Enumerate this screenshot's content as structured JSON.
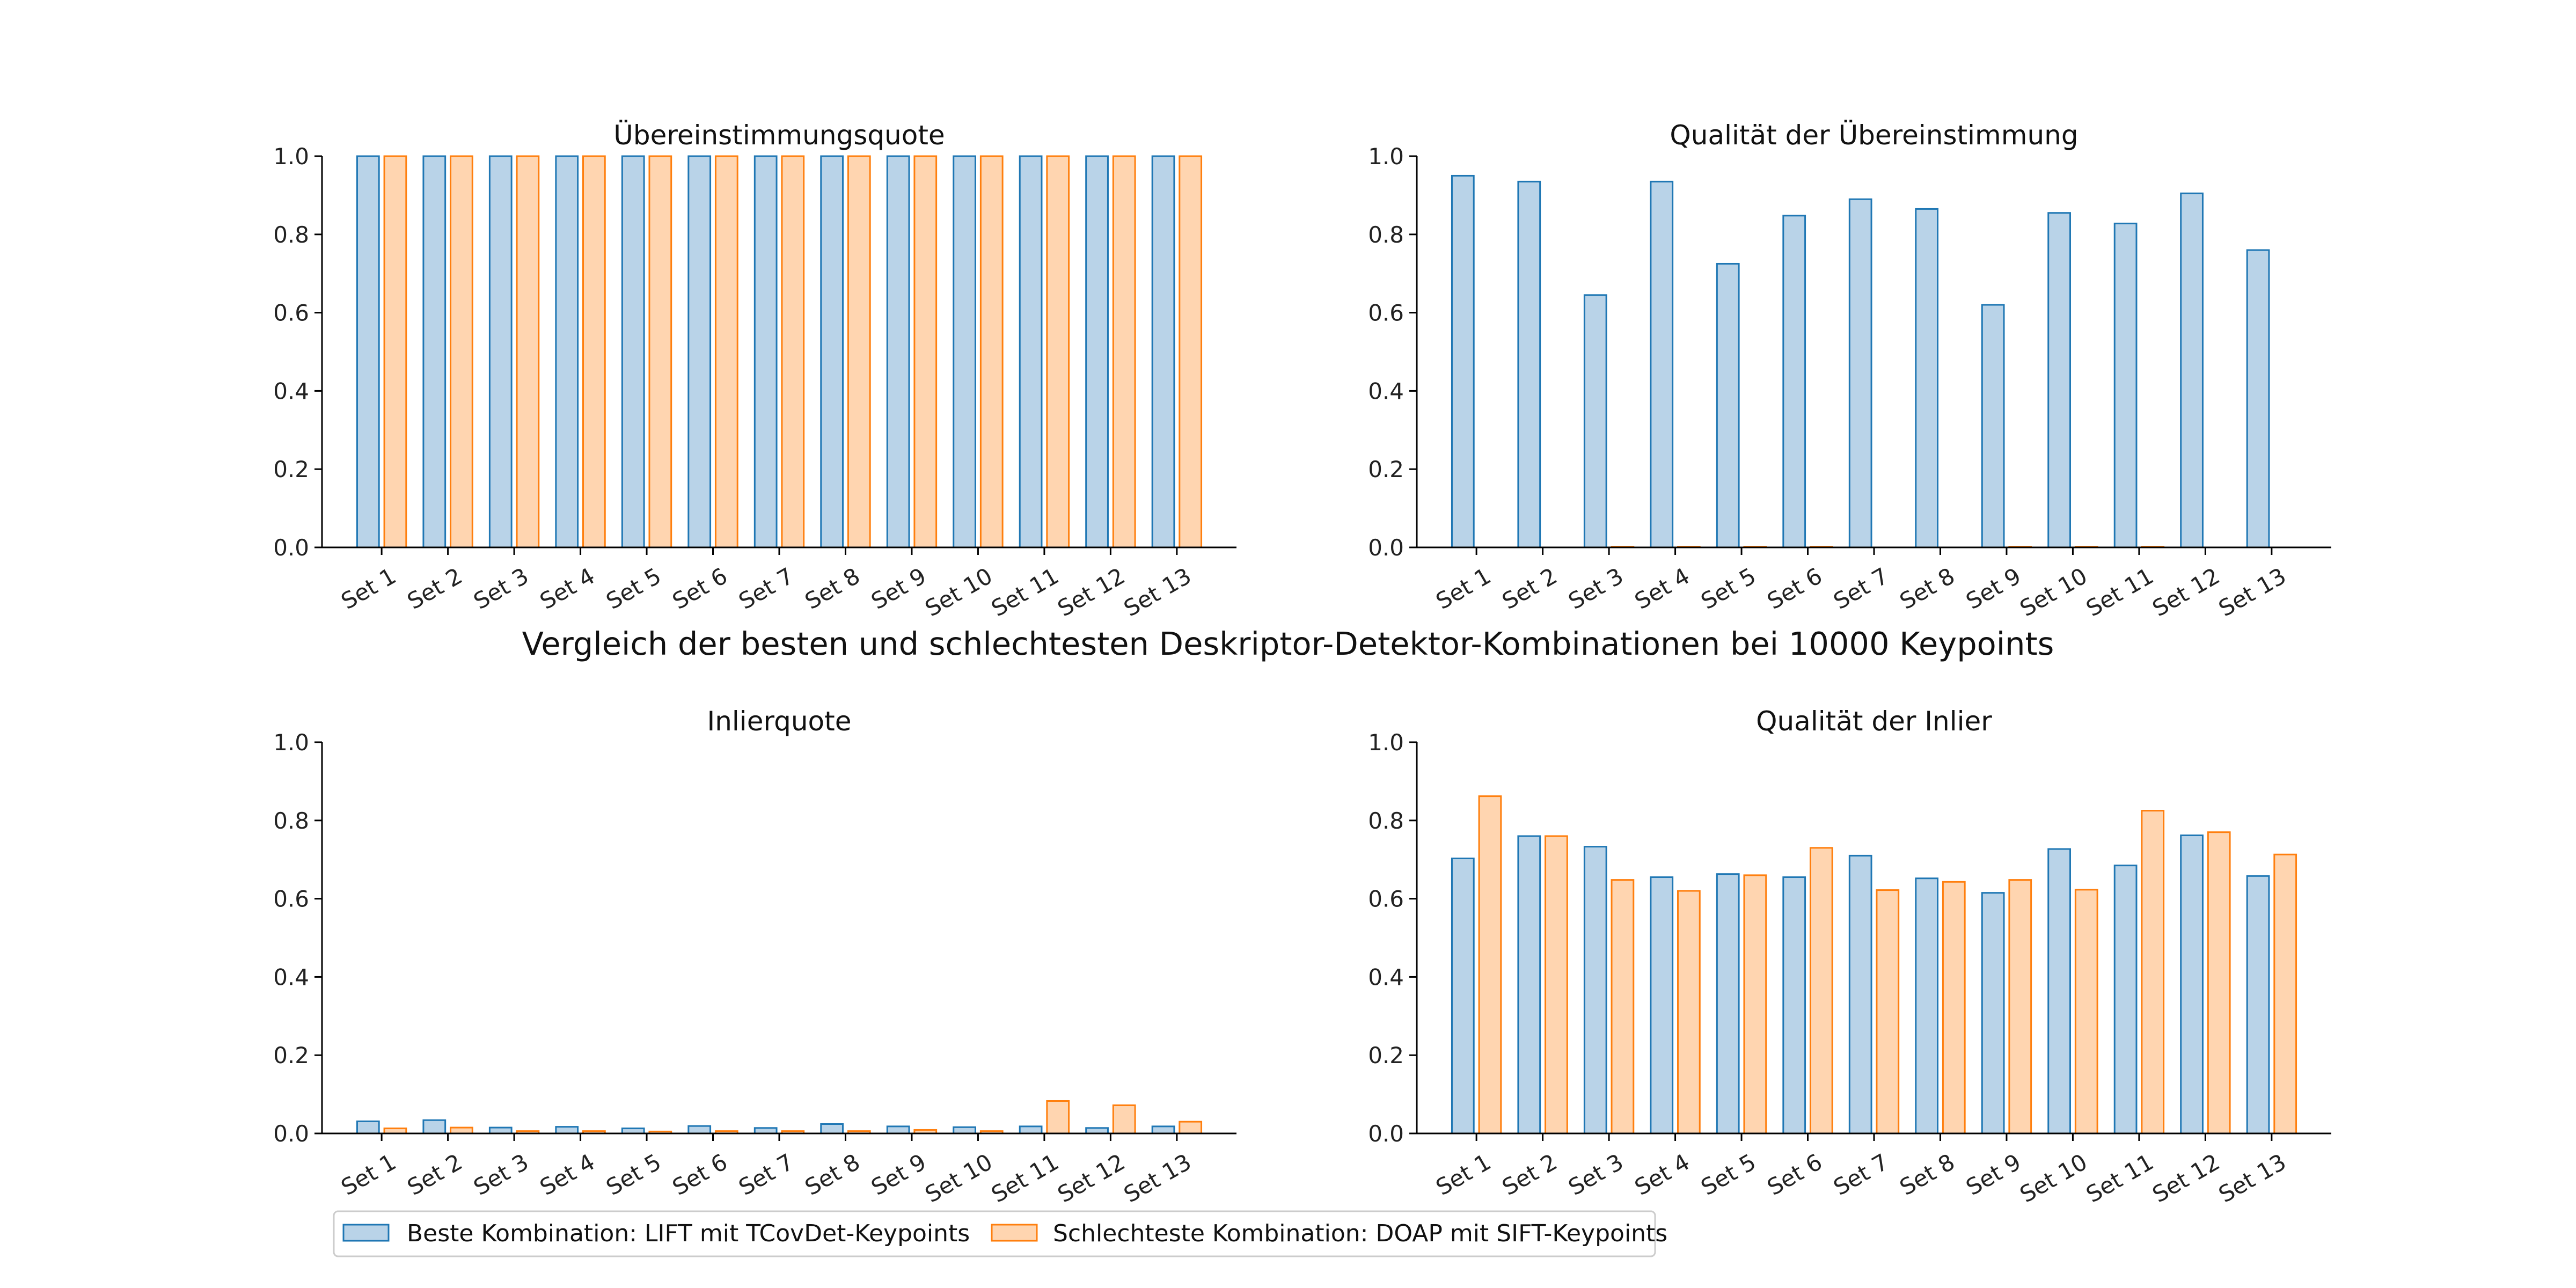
{
  "figure": {
    "suptitle": "Vergleich der besten und schlechtesten Deskriptor-Detektor-Kombinationen bei 10000 Keypoints"
  },
  "legend": {
    "items": [
      {
        "label": "Beste Kombination: LIFT mit TCovDet-Keypoints",
        "fill": "#b9d3e8",
        "stroke": "#1f77b4"
      },
      {
        "label": "Schlechteste Kombination: DOAP mit SIFT-Keypoints",
        "fill": "#ffd5b0",
        "stroke": "#ff7f0e"
      }
    ]
  },
  "colors": {
    "series_fill": [
      "#b9d3e8",
      "#ffd5b0"
    ],
    "series_stroke": [
      "#1f77b4",
      "#ff7f0e"
    ],
    "axis": "#000000"
  },
  "chart_data": [
    {
      "type": "bar",
      "title": "Übereinstimmungsquote",
      "xlabel": "",
      "ylabel": "",
      "ylim": [
        0,
        1.0
      ],
      "yticks": [
        "0.0",
        "0.2",
        "0.4",
        "0.6",
        "0.8",
        "1.0"
      ],
      "categories": [
        "Set 1",
        "Set 2",
        "Set 3",
        "Set 4",
        "Set 5",
        "Set 6",
        "Set 7",
        "Set 8",
        "Set 9",
        "Set 10",
        "Set 11",
        "Set 12",
        "Set 13"
      ],
      "series": [
        {
          "name": "Beste Kombination: LIFT mit TCovDet-Keypoints",
          "values": [
            1,
            1,
            1,
            1,
            1,
            1,
            1,
            1,
            1,
            1,
            1,
            1,
            1
          ]
        },
        {
          "name": "Schlechteste Kombination: DOAP mit SIFT-Keypoints",
          "values": [
            1,
            1,
            1,
            1,
            1,
            1,
            1,
            1,
            1,
            1,
            1,
            1,
            1
          ]
        }
      ],
      "grid": false
    },
    {
      "type": "bar",
      "title": "Qualität der Übereinstimmung",
      "xlabel": "",
      "ylabel": "",
      "ylim": [
        0,
        1.0
      ],
      "yticks": [
        "0.0",
        "0.2",
        "0.4",
        "0.6",
        "0.8",
        "1.0"
      ],
      "categories": [
        "Set 1",
        "Set 2",
        "Set 3",
        "Set 4",
        "Set 5",
        "Set 6",
        "Set 7",
        "Set 8",
        "Set 9",
        "Set 10",
        "Set 11",
        "Set 12",
        "Set 13"
      ],
      "series": [
        {
          "name": "Beste Kombination: LIFT mit TCovDet-Keypoints",
          "values": [
            0.95,
            0.935,
            0.645,
            0.935,
            0.725,
            0.848,
            0.89,
            0.865,
            0.62,
            0.855,
            0.828,
            0.905,
            0.76
          ]
        },
        {
          "name": "Schlechteste Kombination: DOAP mit SIFT-Keypoints",
          "values": [
            0,
            0,
            0.002,
            0.002,
            0.002,
            0.002,
            0,
            0,
            0.002,
            0.002,
            0.002,
            0,
            0
          ]
        }
      ],
      "grid": false
    },
    {
      "type": "bar",
      "title": "Inlierquote",
      "xlabel": "",
      "ylabel": "",
      "ylim": [
        0,
        1.0
      ],
      "yticks": [
        "0.0",
        "0.2",
        "0.4",
        "0.6",
        "0.8",
        "1.0"
      ],
      "categories": [
        "Set 1",
        "Set 2",
        "Set 3",
        "Set 4",
        "Set 5",
        "Set 6",
        "Set 7",
        "Set 8",
        "Set 9",
        "Set 10",
        "Set 11",
        "Set 12",
        "Set 13"
      ],
      "series": [
        {
          "name": "Beste Kombination: LIFT mit TCovDet-Keypoints",
          "values": [
            0.031,
            0.034,
            0.015,
            0.017,
            0.013,
            0.019,
            0.014,
            0.024,
            0.018,
            0.016,
            0.018,
            0.014,
            0.018
          ]
        },
        {
          "name": "Schlechteste Kombination: DOAP mit SIFT-Keypoints",
          "values": [
            0.013,
            0.015,
            0.006,
            0.006,
            0.005,
            0.006,
            0.006,
            0.006,
            0.009,
            0.006,
            0.083,
            0.072,
            0.03
          ]
        }
      ],
      "grid": false
    },
    {
      "type": "bar",
      "title": "Qualität der Inlier",
      "xlabel": "",
      "ylabel": "",
      "ylim": [
        0,
        1.0
      ],
      "yticks": [
        "0.0",
        "0.2",
        "0.4",
        "0.6",
        "0.8",
        "1.0"
      ],
      "categories": [
        "Set 1",
        "Set 2",
        "Set 3",
        "Set 4",
        "Set 5",
        "Set 6",
        "Set 7",
        "Set 8",
        "Set 9",
        "Set 10",
        "Set 11",
        "Set 12",
        "Set 13"
      ],
      "series": [
        {
          "name": "Beste Kombination: LIFT mit TCovDet-Keypoints",
          "values": [
            0.703,
            0.76,
            0.733,
            0.655,
            0.663,
            0.655,
            0.71,
            0.652,
            0.615,
            0.727,
            0.685,
            0.762,
            0.658
          ]
        },
        {
          "name": "Schlechteste Kombination: DOAP mit SIFT-Keypoints",
          "values": [
            0.862,
            0.76,
            0.648,
            0.62,
            0.66,
            0.73,
            0.622,
            0.643,
            0.648,
            0.623,
            0.825,
            0.77,
            0.713
          ]
        }
      ],
      "grid": false
    }
  ]
}
